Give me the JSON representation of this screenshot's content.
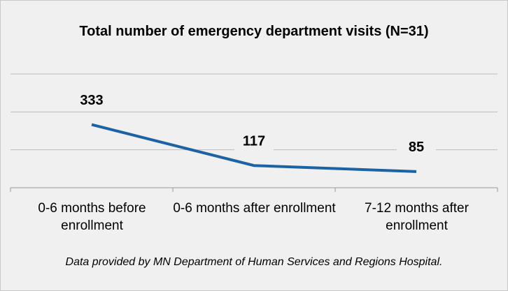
{
  "chart_data": {
    "type": "line",
    "title": "Total number of emergency department visits (N=31)",
    "categories": [
      "0-6 months before enrollment",
      "0-6 months after enrollment",
      "7-12 months after enrollment"
    ],
    "series": [
      {
        "name": "Emergency department visits",
        "color": "#1c63a6",
        "values": [
          333,
          117,
          85
        ]
      }
    ],
    "ylim": [
      0,
      600
    ],
    "yticks": [
      0,
      200,
      400,
      600
    ],
    "grid": true,
    "annotations": [
      "Data provided by MN Department of Human Services and Regions Hospital."
    ]
  }
}
